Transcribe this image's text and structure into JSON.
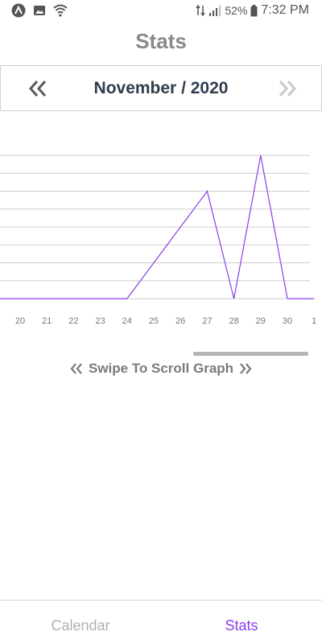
{
  "status_bar": {
    "battery_percent": "52%",
    "time": "7:32 PM",
    "left_icons": [
      "app-logo-icon",
      "image-icon",
      "wifi-icon"
    ],
    "right_icons": [
      "data-transfer-icon",
      "signal-icon",
      "battery-icon"
    ]
  },
  "header": {
    "title": "Stats"
  },
  "month_nav": {
    "label": "November / 2020",
    "prev_icon": "double-chevron-left-icon",
    "next_icon": "double-chevron-right-icon"
  },
  "chart_data": {
    "type": "line",
    "x": [
      "20",
      "21",
      "22",
      "23",
      "24",
      "25",
      "26",
      "27",
      "28",
      "29",
      "30",
      "1"
    ],
    "series": [
      {
        "values": [
          0,
          0,
          0,
          0,
          0,
          3,
          6,
          9,
          0,
          12,
          0,
          0
        ]
      }
    ],
    "ylim": [
      0,
      12
    ],
    "grid": true,
    "line_color": "#8a3ee6",
    "grid_color": "#cfcfcf"
  },
  "swipe_hint": {
    "label": "Swipe To Scroll Graph"
  },
  "bottom_nav": {
    "tabs": [
      {
        "label": "Calendar",
        "active": false
      },
      {
        "label": "Stats",
        "active": true
      }
    ],
    "active_color": "#8a3ee6"
  }
}
